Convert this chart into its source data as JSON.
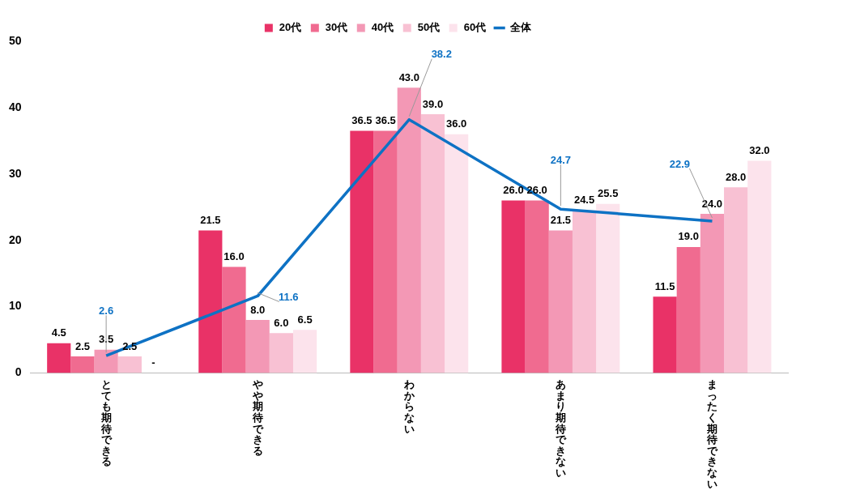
{
  "chart_data": {
    "type": "bar",
    "categories": [
      "とても期待できる",
      "やや期待できる",
      "わからない",
      "あまり期待できない",
      "まったく期待できない"
    ],
    "ylim": [
      0,
      50
    ],
    "yticks": [
      0,
      10,
      20,
      30,
      40,
      50
    ],
    "grid": false,
    "legend": "top",
    "marker": "none",
    "series": [
      {
        "name": "20代",
        "color": "#e93267",
        "values": [
          4.5,
          21.5,
          36.5,
          26.0,
          11.5
        ],
        "value_labels": [
          "4.5",
          "21.5",
          "36.5",
          "26.0",
          "11.5"
        ]
      },
      {
        "name": "30代",
        "color": "#f06b90",
        "values": [
          2.5,
          16.0,
          36.5,
          26.0,
          19.0
        ],
        "value_labels": [
          "2.5",
          "16.0",
          "36.5",
          "26.0",
          "19.0"
        ]
      },
      {
        "name": "40代",
        "color": "#f398b5",
        "values": [
          3.5,
          8.0,
          43.0,
          21.5,
          24.0
        ],
        "value_labels": [
          "3.5",
          "8.0",
          "43.0",
          "21.5",
          "24.0"
        ]
      },
      {
        "name": "50代",
        "color": "#f8c1d3",
        "values": [
          2.5,
          6.0,
          39.0,
          24.5,
          28.0
        ],
        "value_labels": [
          "2.5",
          "6.0",
          "39.0",
          "24.5",
          "28.0"
        ]
      },
      {
        "name": "60代",
        "color": "#fce3ec",
        "values": [
          null,
          6.5,
          36.0,
          25.5,
          32.0
        ],
        "value_labels": [
          "-",
          "6.5",
          "36.0",
          "25.5",
          "32.0"
        ]
      },
      {
        "name": "全体",
        "type": "line",
        "color": "#0e72c4",
        "values": [
          2.6,
          11.6,
          38.2,
          24.7,
          22.9
        ],
        "value_labels": [
          "2.6",
          "11.6",
          "38.2",
          "24.7",
          "22.9"
        ]
      }
    ]
  }
}
